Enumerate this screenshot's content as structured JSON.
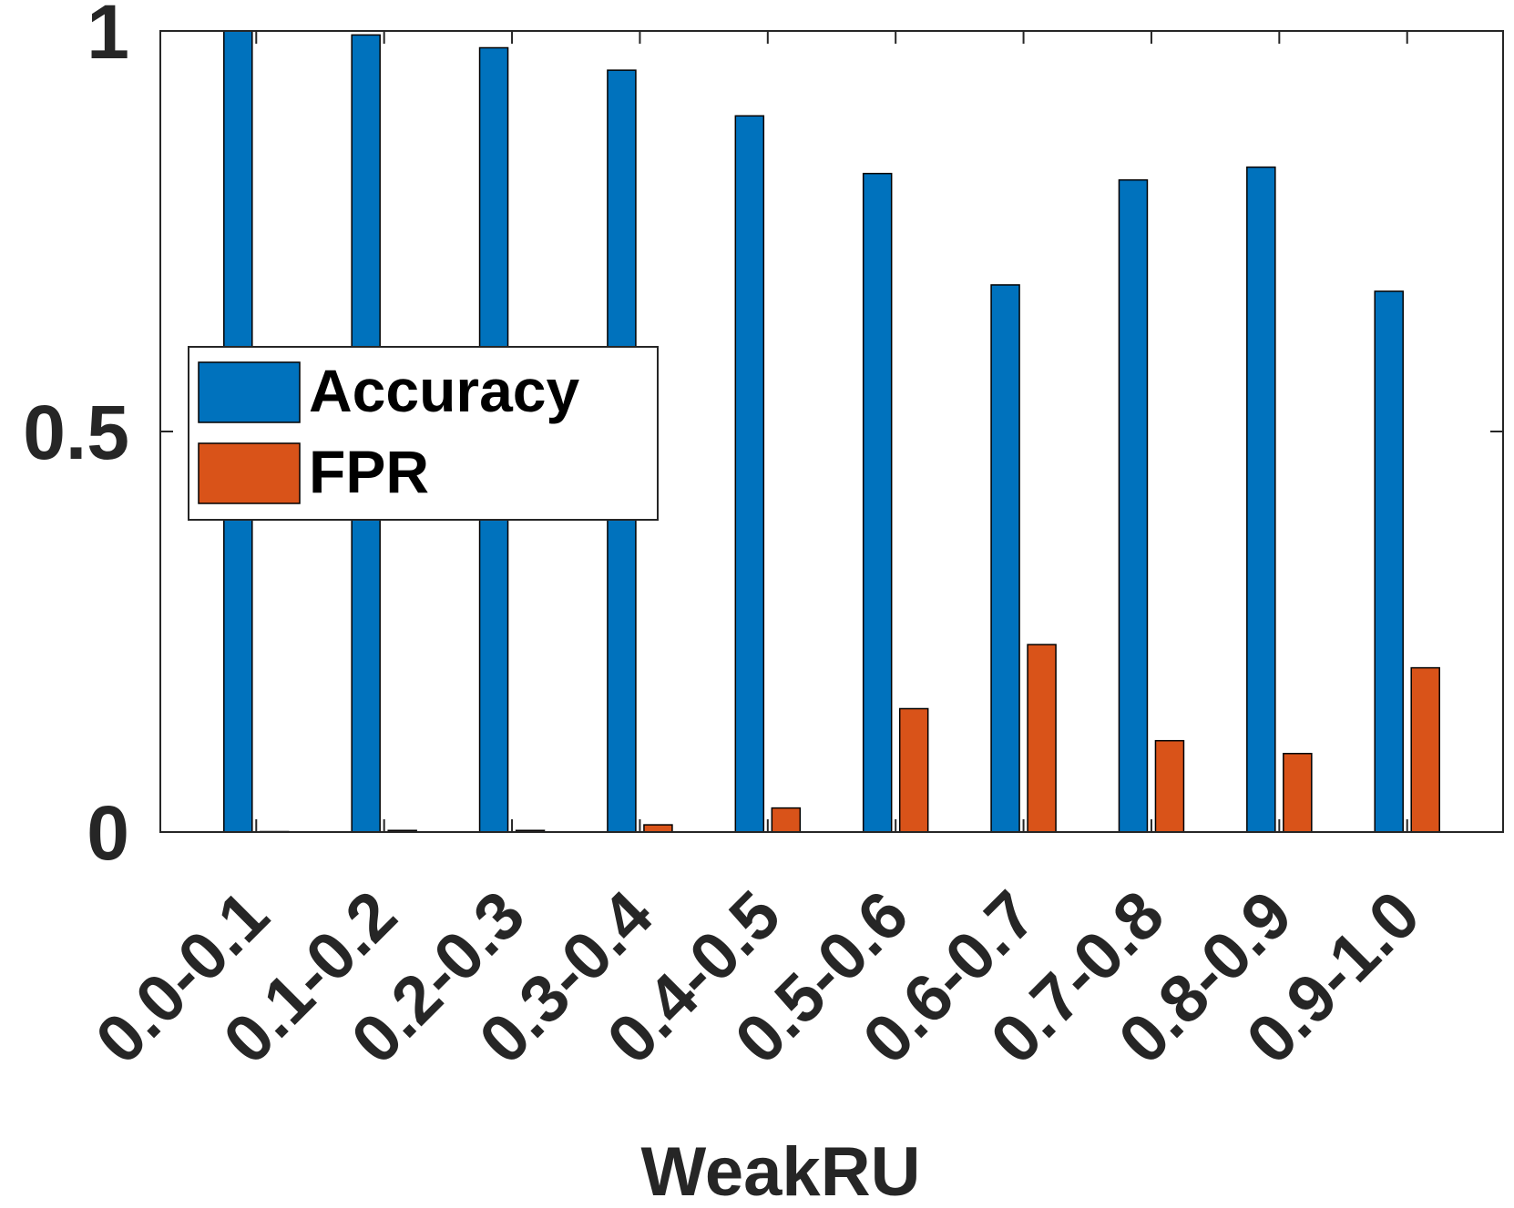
{
  "chart_data": {
    "type": "bar",
    "title": "",
    "xlabel": "WeakRU",
    "ylabel": "",
    "categories": [
      "0.0-0.1",
      "0.1-0.2",
      "0.2-0.3",
      "0.3-0.4",
      "0.4-0.5",
      "0.5-0.6",
      "0.6-0.7",
      "0.7-0.8",
      "0.8-0.9",
      "0.9-1.0"
    ],
    "series": [
      {
        "name": "Accuracy",
        "color": "#0072BD",
        "values": [
          1.0,
          0.995,
          0.979,
          0.951,
          0.894,
          0.822,
          0.683,
          0.814,
          0.83,
          0.675
        ]
      },
      {
        "name": "FPR",
        "color": "#D95319",
        "values": [
          0.0,
          0.002,
          0.002,
          0.009,
          0.03,
          0.154,
          0.234,
          0.114,
          0.098,
          0.205
        ]
      }
    ],
    "ylim": [
      0,
      1
    ],
    "yticks": [
      {
        "value": 0,
        "label": "0"
      },
      {
        "value": 0.5,
        "label": "0.5"
      },
      {
        "value": 1,
        "label": "1"
      }
    ],
    "grid": false,
    "legend_position": "middle-left"
  }
}
